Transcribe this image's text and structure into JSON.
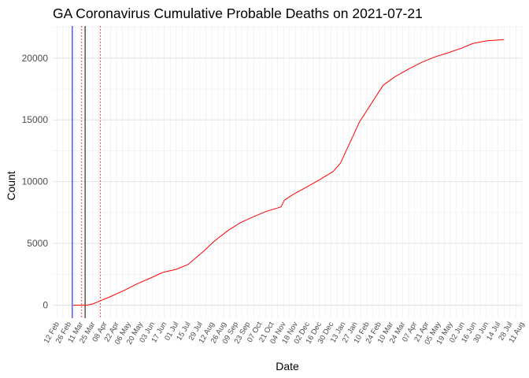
{
  "chart_data": {
    "type": "line",
    "title": "GA Coronavirus Cumulative Probable Deaths on 2021-07-21",
    "xlabel": "Date",
    "ylabel": "Count",
    "ylim": [
      -1050,
      22600
    ],
    "xlim": [
      "2020-02-07",
      "2021-08-11"
    ],
    "grid": true,
    "y_ticks": [
      0,
      5000,
      10000,
      15000,
      20000
    ],
    "x_ticks": [
      {
        "date": "2020-02-12",
        "label": "12 Feb"
      },
      {
        "date": "2020-02-26",
        "label": "26 Feb"
      },
      {
        "date": "2020-03-11",
        "label": "11 Mar"
      },
      {
        "date": "2020-03-25",
        "label": "25 Mar"
      },
      {
        "date": "2020-04-08",
        "label": "08 Apr"
      },
      {
        "date": "2020-04-22",
        "label": "22 Apr"
      },
      {
        "date": "2020-05-06",
        "label": "06 May"
      },
      {
        "date": "2020-05-20",
        "label": "20 May"
      },
      {
        "date": "2020-06-03",
        "label": "03 Jun"
      },
      {
        "date": "2020-06-17",
        "label": "17 Jun"
      },
      {
        "date": "2020-07-01",
        "label": "01 Jul"
      },
      {
        "date": "2020-07-15",
        "label": "15 Jul"
      },
      {
        "date": "2020-07-29",
        "label": "29 Jul"
      },
      {
        "date": "2020-08-12",
        "label": "12 Aug"
      },
      {
        "date": "2020-08-26",
        "label": "26 Aug"
      },
      {
        "date": "2020-09-09",
        "label": "09 Sep"
      },
      {
        "date": "2020-09-23",
        "label": "23 Sep"
      },
      {
        "date": "2020-10-07",
        "label": "07 Oct"
      },
      {
        "date": "2020-10-21",
        "label": "21 Oct"
      },
      {
        "date": "2020-11-04",
        "label": "04 Nov"
      },
      {
        "date": "2020-11-18",
        "label": "18 Nov"
      },
      {
        "date": "2020-12-02",
        "label": "02 Dec"
      },
      {
        "date": "2020-12-16",
        "label": "16 Dec"
      },
      {
        "date": "2020-12-30",
        "label": "30 Dec"
      },
      {
        "date": "2021-01-13",
        "label": "13 Jan"
      },
      {
        "date": "2021-01-27",
        "label": "27 Jan"
      },
      {
        "date": "2021-02-10",
        "label": "10 Feb"
      },
      {
        "date": "2021-02-24",
        "label": "24 Feb"
      },
      {
        "date": "2021-03-10",
        "label": "10 Mar"
      },
      {
        "date": "2021-03-24",
        "label": "24 Mar"
      },
      {
        "date": "2021-04-07",
        "label": "07 Apr"
      },
      {
        "date": "2021-04-21",
        "label": "21 Apr"
      },
      {
        "date": "2021-05-05",
        "label": "05 May"
      },
      {
        "date": "2021-05-19",
        "label": "19 May"
      },
      {
        "date": "2021-06-02",
        "label": "02 Jun"
      },
      {
        "date": "2021-06-16",
        "label": "16 Jun"
      },
      {
        "date": "2021-06-30",
        "label": "30 Jun"
      },
      {
        "date": "2021-07-14",
        "label": "14 Jul"
      },
      {
        "date": "2021-07-28",
        "label": "28 Jul"
      },
      {
        "date": "2021-08-11",
        "label": "11 Aug"
      }
    ],
    "series": [
      {
        "color": "#ff0000",
        "x": [
          "2020-03-02",
          "2020-03-18",
          "2020-03-25",
          "2020-04-01",
          "2020-04-15",
          "2020-05-01",
          "2020-05-15",
          "2020-06-01",
          "2020-06-15",
          "2020-07-01",
          "2020-07-15",
          "2020-08-01",
          "2020-08-15",
          "2020-09-01",
          "2020-09-15",
          "2020-10-01",
          "2020-10-15",
          "2020-11-01",
          "2020-11-05",
          "2020-11-15",
          "2020-12-01",
          "2020-12-15",
          "2021-01-01",
          "2021-01-10",
          "2021-01-20",
          "2021-02-01",
          "2021-02-15",
          "2021-03-01",
          "2021-03-15",
          "2021-04-01",
          "2021-04-15",
          "2021-05-01",
          "2021-05-15",
          "2021-06-01",
          "2021-06-15",
          "2021-07-01",
          "2021-07-21"
        ],
        "values": [
          0,
          0,
          100,
          300,
          700,
          1200,
          1700,
          2200,
          2650,
          2900,
          3300,
          4300,
          5200,
          6100,
          6700,
          7200,
          7600,
          7950,
          8500,
          8950,
          9550,
          10100,
          10800,
          11500,
          13000,
          14800,
          16300,
          17800,
          18500,
          19150,
          19650,
          20100,
          20400,
          20800,
          21200,
          21400,
          21500
        ]
      }
    ],
    "vlines": [
      {
        "date": "2020-03-01",
        "color": "#0000ff",
        "style": "solid"
      },
      {
        "date": "2020-03-16",
        "color": "#000000",
        "style": "solid"
      },
      {
        "date": "2020-03-12",
        "color": "#ff0000",
        "style": "dotted"
      },
      {
        "date": "2020-04-03",
        "color": "#ff0000",
        "style": "dotted"
      }
    ]
  }
}
